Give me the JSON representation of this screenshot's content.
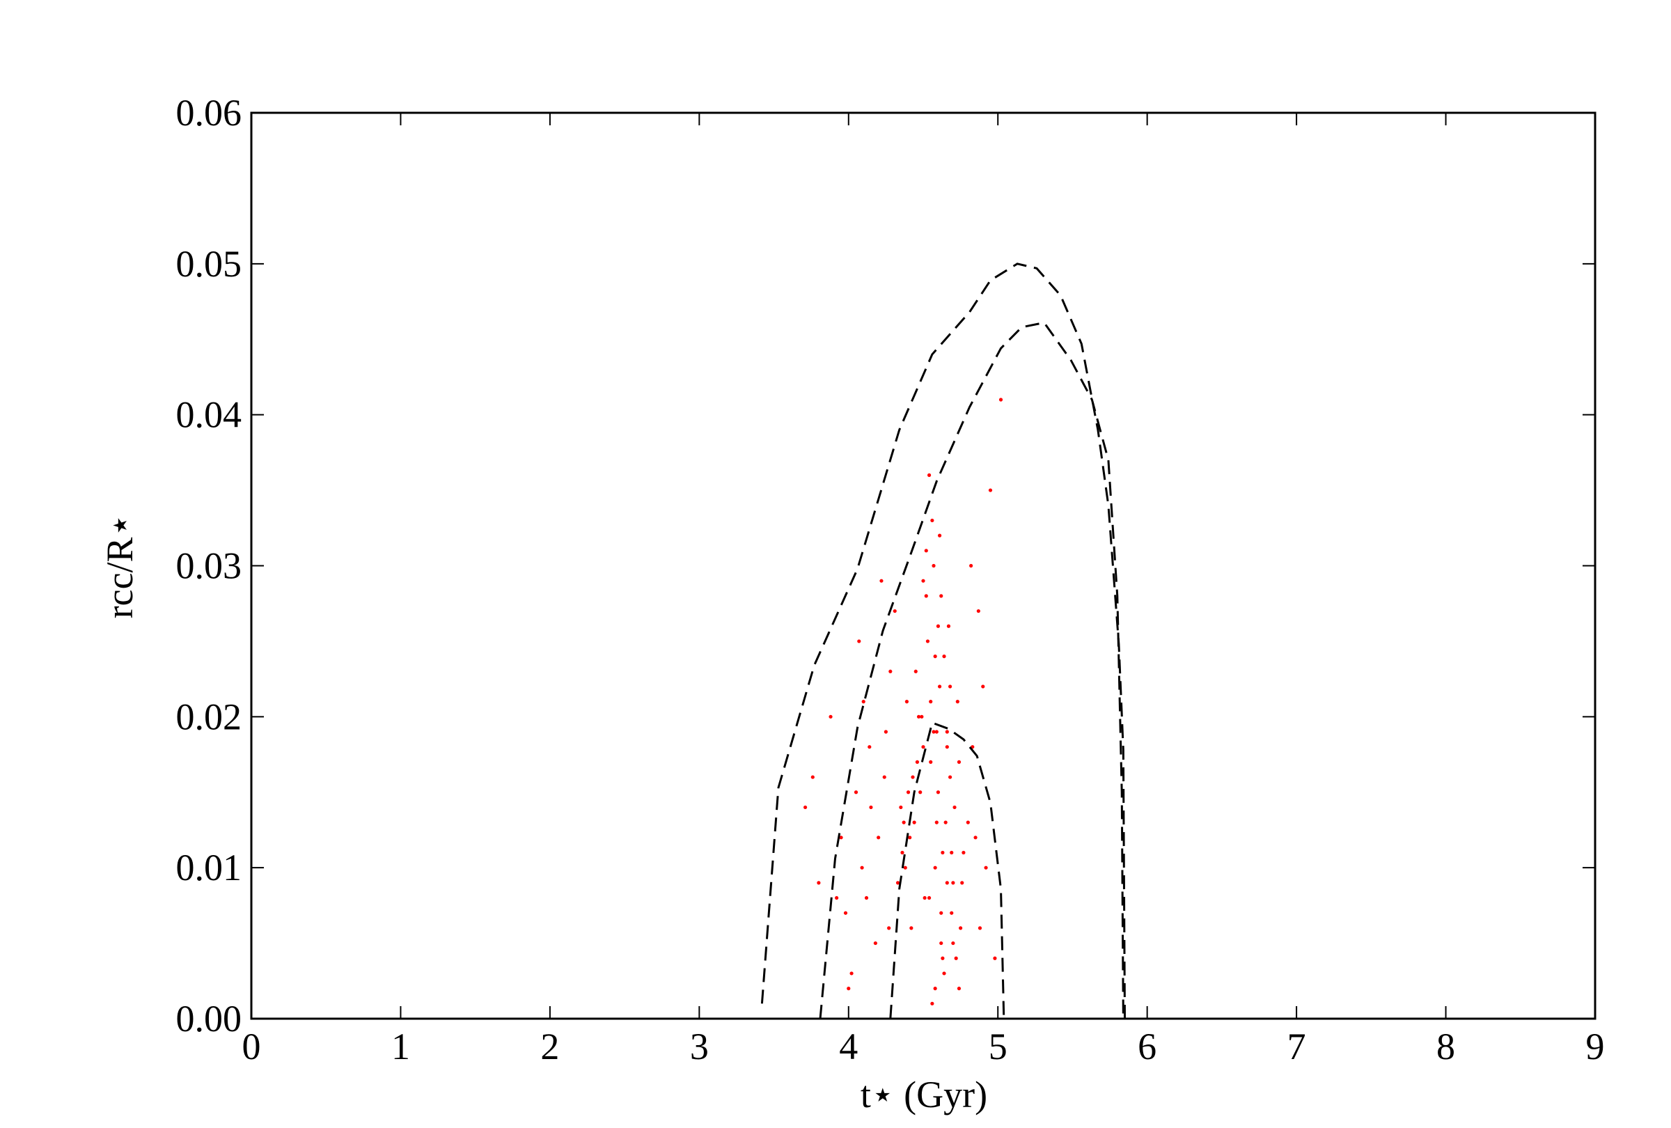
{
  "chart_data": {
    "type": "scatter",
    "xlabel": "t⋆ (Gyr)",
    "ylabel": "rcc/R⋆",
    "xlim": [
      0,
      9
    ],
    "ylim": [
      0,
      0.06
    ],
    "xticks": [
      0,
      1,
      2,
      3,
      4,
      5,
      6,
      7,
      8,
      9
    ],
    "yticks": [
      {
        "value": 0,
        "label": "0.00"
      },
      {
        "value": 0.01,
        "label": "0.01"
      },
      {
        "value": 0.02,
        "label": "0.02"
      },
      {
        "value": 0.03,
        "label": "0.03"
      },
      {
        "value": 0.04,
        "label": "0.04"
      },
      {
        "value": 0.05,
        "label": "0.05"
      },
      {
        "value": 0.06,
        "label": "0.06"
      }
    ],
    "points": {
      "color": "#ff0000",
      "x": [
        4.55,
        4.62,
        4.48,
        4.7,
        4.58,
        4.41,
        4.66,
        4.52,
        4.75,
        4.6,
        4.35,
        4.63,
        4.57,
        4.72,
        4.45,
        4.68,
        4.54,
        4.8,
        4.5,
        4.61,
        4.38,
        4.69,
        4.56,
        4.74,
        4.47,
        4.64,
        4.59,
        4.43,
        4.77,
        4.53,
        4.2,
        4.28,
        4.12,
        4.05,
        4.31,
        4.18,
        4.25,
        4.09,
        4.15,
        4.33,
        4.02,
        3.95,
        4.22,
        4.1,
        4.27,
        3.98,
        4.36,
        4.14,
        4.07,
        4.24,
        4.85,
        4.9,
        4.82,
        4.88,
        4.95,
        4.83,
        4.92,
        4.87,
        4.98,
        5.02,
        4.58,
        4.62,
        4.66,
        4.55,
        4.71,
        4.49,
        4.64,
        4.57,
        4.73,
        4.6,
        4.51,
        4.67,
        4.44,
        4.69,
        4.59,
        4.63,
        4.54,
        4.76,
        4.46,
        4.65,
        4.61,
        4.56,
        4.7,
        4.52,
        4.68,
        4.58,
        4.74,
        4.5,
        4.62,
        4.66,
        3.8,
        3.76,
        3.88,
        4.0,
        3.92,
        3.71,
        4.4,
        4.39,
        4.42,
        4.37
      ],
      "y": [
        0.021,
        0.028,
        0.015,
        0.009,
        0.024,
        0.012,
        0.018,
        0.031,
        0.006,
        0.026,
        0.014,
        0.011,
        0.019,
        0.004,
        0.023,
        0.016,
        0.008,
        0.013,
        0.029,
        0.022,
        0.01,
        0.007,
        0.033,
        0.017,
        0.02,
        0.003,
        0.013,
        0.016,
        0.011,
        0.025,
        0.012,
        0.023,
        0.008,
        0.015,
        0.027,
        0.005,
        0.019,
        0.01,
        0.014,
        0.009,
        0.003,
        0.012,
        0.029,
        0.021,
        0.006,
        0.007,
        0.011,
        0.018,
        0.025,
        0.016,
        0.012,
        0.022,
        0.03,
        0.006,
        0.035,
        0.018,
        0.01,
        0.027,
        0.004,
        0.041,
        0.002,
        0.005,
        0.009,
        0.017,
        0.014,
        0.02,
        0.024,
        0.03,
        0.021,
        0.015,
        0.008,
        0.026,
        0.013,
        0.011,
        0.019,
        0.004,
        0.036,
        0.009,
        0.017,
        0.013,
        0.032,
        0.001,
        0.005,
        0.028,
        0.022,
        0.01,
        0.002,
        0.018,
        0.007,
        0.019,
        0.009,
        0.016,
        0.02,
        0.002,
        0.008,
        0.014,
        0.015,
        0.021,
        0.006,
        0.013
      ]
    },
    "curves": [
      {
        "color": "#000000",
        "dashed": true,
        "x": [
          3.42,
          3.53,
          3.77,
          4.06,
          4.34,
          4.56,
          4.81,
          4.95,
          5.13,
          5.26,
          5.42,
          5.56,
          5.67,
          5.74,
          5.81,
          5.84,
          5.85
        ],
        "y": [
          0.001,
          0.0153,
          0.0234,
          0.0298,
          0.039,
          0.044,
          0.0468,
          0.0489,
          0.05,
          0.0497,
          0.0479,
          0.0447,
          0.039,
          0.034,
          0.0248,
          0.0178,
          0.0
        ]
      },
      {
        "color": "#000000",
        "dashed": true,
        "x": [
          3.81,
          3.91,
          4.06,
          4.23,
          4.41,
          4.59,
          4.81,
          5.02,
          5.16,
          5.31,
          5.49,
          5.63,
          5.74,
          5.8,
          5.83,
          5.84
        ],
        "y": [
          0.0,
          0.0106,
          0.0193,
          0.0257,
          0.0306,
          0.0356,
          0.0405,
          0.0444,
          0.0458,
          0.0461,
          0.0436,
          0.041,
          0.037,
          0.028,
          0.015,
          0.0
        ]
      },
      {
        "color": "#000000",
        "dashed": true,
        "x": [
          4.28,
          4.34,
          4.44,
          4.56,
          4.67,
          4.77,
          4.86,
          4.95,
          5.02,
          5.04
        ],
        "y": [
          0.0,
          0.0086,
          0.015,
          0.0196,
          0.0192,
          0.0185,
          0.0174,
          0.0143,
          0.0086,
          0.0
        ]
      }
    ]
  }
}
